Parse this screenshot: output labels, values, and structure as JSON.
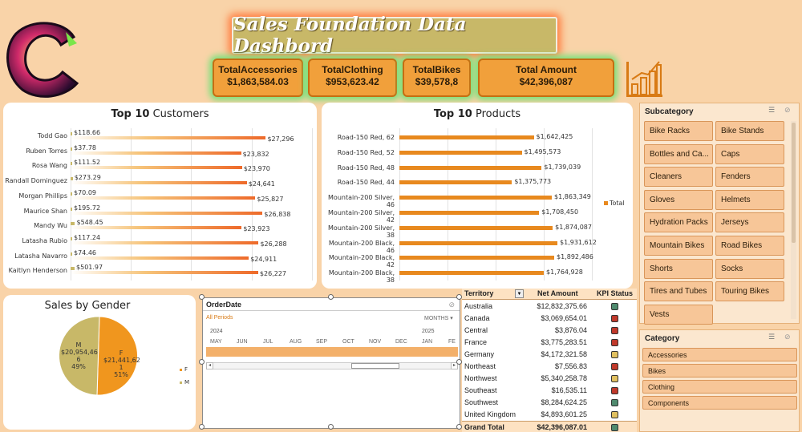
{
  "dashboard": {
    "title": "Sales Foundation Data Dashbord"
  },
  "kpis": [
    {
      "label": "TotalAccessories",
      "value": "$1,863,584.03"
    },
    {
      "label": "TotalClothing",
      "value": "$953,623.42"
    },
    {
      "label": "TotalBikes",
      "value": "$39,578,8"
    },
    {
      "label": "Total Amount",
      "value": "$42,396,087"
    }
  ],
  "top_customers": {
    "title_bold": "Top 10",
    "title_rest": " Customers",
    "rows": [
      {
        "name": "Todd Gao",
        "small": "$118.66",
        "large": "$27,296"
      },
      {
        "name": "Ruben Torres",
        "small": "$37.78",
        "large": "$23,832"
      },
      {
        "name": "Rosa Wang",
        "small": "$111.52",
        "large": "$23,970"
      },
      {
        "name": "Randall Dominguez",
        "small": "$273.29",
        "large": "$24,641"
      },
      {
        "name": "Morgan Phillips",
        "small": "$70.09",
        "large": "$25,827"
      },
      {
        "name": "Maurice Shan",
        "small": "$195.72",
        "large": "$26,838"
      },
      {
        "name": "Mandy Wu",
        "small": "$548.45",
        "large": "$23,923"
      },
      {
        "name": "Latasha Rubio",
        "small": "$117.24",
        "large": "$26,288"
      },
      {
        "name": "Latasha Navarro",
        "small": "$74.46",
        "large": "$24,911"
      },
      {
        "name": "Kaitlyn Henderson",
        "small": "$501.97",
        "large": "$26,227"
      }
    ]
  },
  "top_products": {
    "title_bold": "Top 10",
    "title_rest": " Products",
    "legend": "Total",
    "rows": [
      {
        "name": "Road-150 Red, 62",
        "value": "$1,642,425"
      },
      {
        "name": "Road-150 Red, 52",
        "value": "$1,495,573"
      },
      {
        "name": "Road-150 Red, 48",
        "value": "$1,739,039"
      },
      {
        "name": "Road-150 Red, 44",
        "value": "$1,375,773"
      },
      {
        "name": "Mountain-200 Silver, 46",
        "value": "$1,863,349"
      },
      {
        "name": "Mountain-200 Silver, 42",
        "value": "$1,708,450"
      },
      {
        "name": "Mountain-200 Silver, 38",
        "value": "$1,874,087"
      },
      {
        "name": "Mountain-200 Black, 46",
        "value": "$1,931,612"
      },
      {
        "name": "Mountain-200 Black, 42",
        "value": "$1,892,486"
      },
      {
        "name": "Mountain-200 Black, 38",
        "value": "$1,764,928"
      }
    ]
  },
  "gender": {
    "title": "Sales by Gender",
    "m_label": "M\n$20,954,46\n6\n49%",
    "f_label": "F\n$21,441,62\n1\n51%",
    "legend_f": "F",
    "legend_m": "M"
  },
  "chart_data": [
    {
      "type": "bar",
      "title": "Top 10 Customers",
      "categories": [
        "Todd Gao",
        "Ruben Torres",
        "Rosa Wang",
        "Randall Dominguez",
        "Morgan Phillips",
        "Maurice Shan",
        "Mandy Wu",
        "Latasha Rubio",
        "Latasha Navarro",
        "Kaitlyn Henderson"
      ],
      "series": [
        {
          "values": [
            118.66,
            37.78,
            111.52,
            273.29,
            70.09,
            195.72,
            548.45,
            117.24,
            74.46,
            501.97
          ]
        },
        {
          "values": [
            27296,
            23832,
            23970,
            24641,
            25827,
            26838,
            23923,
            26288,
            24911,
            26227
          ]
        }
      ]
    },
    {
      "type": "bar",
      "title": "Top 10 Products",
      "categories": [
        "Road-150 Red, 62",
        "Road-150 Red, 52",
        "Road-150 Red, 48",
        "Road-150 Red, 44",
        "Mountain-200 Silver, 46",
        "Mountain-200 Silver, 42",
        "Mountain-200 Silver, 38",
        "Mountain-200 Black, 46",
        "Mountain-200 Black, 42",
        "Mountain-200 Black, 38"
      ],
      "series": [
        {
          "name": "Total",
          "values": [
            1642425,
            1495573,
            1739039,
            1375773,
            1863349,
            1708450,
            1874087,
            1931612,
            1892486,
            1764928
          ]
        }
      ]
    },
    {
      "type": "pie",
      "title": "Sales by Gender",
      "categories": [
        "F",
        "M"
      ],
      "values": [
        21441621,
        20954466
      ],
      "percent": [
        51,
        49
      ]
    }
  ],
  "timeline": {
    "title": "OrderDate",
    "all_periods": "All Periods",
    "unit": "MONTHS",
    "year1": "2024",
    "year2": "2025",
    "months": [
      "MAY",
      "JUN",
      "JUL",
      "AUG",
      "SEP",
      "OCT",
      "NOV",
      "DEC",
      "JAN",
      "FE"
    ]
  },
  "territory": {
    "col_territory": "Territory",
    "col_net": "Net Amount",
    "col_kpi": "KPI Status",
    "rows": [
      {
        "name": "Australia",
        "amount": "$12,832,375.66",
        "kpi": "#4f8a6e"
      },
      {
        "name": "Canada",
        "amount": "$3,069,654.01",
        "kpi": "#c0392b"
      },
      {
        "name": "Central",
        "amount": "$3,876.04",
        "kpi": "#c0392b"
      },
      {
        "name": "France",
        "amount": "$3,775,283.51",
        "kpi": "#c0392b"
      },
      {
        "name": "Germany",
        "amount": "$4,172,321.58",
        "kpi": "#e0c060"
      },
      {
        "name": "Northeast",
        "amount": "$7,556.83",
        "kpi": "#c0392b"
      },
      {
        "name": "Northwest",
        "amount": "$5,340,258.78",
        "kpi": "#e0c060"
      },
      {
        "name": "Southeast",
        "amount": "$16,535.11",
        "kpi": "#c0392b"
      },
      {
        "name": "Southwest",
        "amount": "$8,284,624.25",
        "kpi": "#4f8a6e"
      },
      {
        "name": "United Kingdom",
        "amount": "$4,893,601.25",
        "kpi": "#e0c060"
      }
    ],
    "total_label": "Grand Total",
    "total_amount": "$42,396,087.01",
    "total_kpi": "#4f8a6e"
  },
  "subcategory": {
    "title": "Subcategory",
    "items": [
      "Bike Racks",
      "Bike Stands",
      "Bottles and Ca...",
      "Caps",
      "Cleaners",
      "Fenders",
      "Gloves",
      "Helmets",
      "Hydration Packs",
      "Jerseys",
      "Mountain Bikes",
      "Road Bikes",
      "Shorts",
      "Socks",
      "Tires and Tubes",
      "Touring Bikes",
      "Vests"
    ]
  },
  "category": {
    "title": "Category",
    "items": [
      "Accessories",
      "Bikes",
      "Clothing",
      "Components"
    ]
  }
}
